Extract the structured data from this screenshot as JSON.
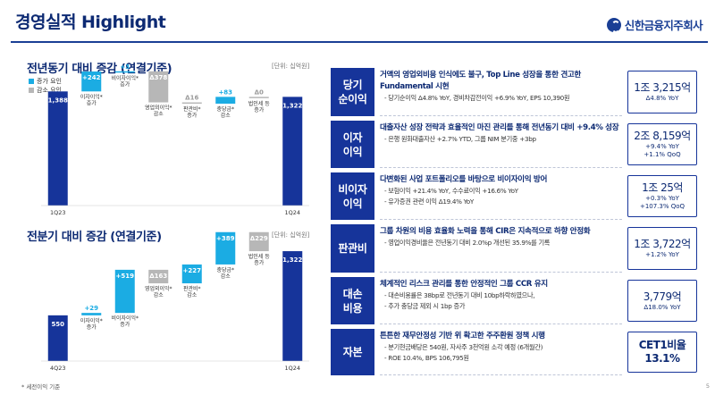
{
  "header": {
    "title": "경영실적 Highlight",
    "logo_text": "신한금융지주회사"
  },
  "left": {
    "yoy": {
      "title": "전년동기 대비 증감 (연결기준)",
      "unit": "[단위: 십억원]"
    },
    "qoq": {
      "title": "전분기 대비 증감 (연결기준)",
      "unit": "[단위: 십억원]"
    },
    "legend": {
      "increase": "증가 요인",
      "decrease": "감소 요인"
    },
    "colors": {
      "total": "#16349a",
      "increase": "#1bace3",
      "decrease": "#b7b7b7"
    }
  },
  "chart_data": [
    {
      "type": "bar",
      "subtype": "waterfall",
      "title": "전년동기 대비 증감 (연결기준)",
      "unit": "[단위: 십억원]",
      "categories": [
        "1Q23",
        "이자이익* 증가",
        "비이자이익* 증가",
        "영업외이익* 감소",
        "판관비* 증가",
        "충당금* 감소",
        "법인세 등 증가",
        "1Q24"
      ],
      "values": [
        1388,
        242,
        3,
        -378,
        -16,
        83,
        0,
        1322
      ],
      "data_labels": [
        "1,388",
        "+242",
        "+3",
        "Δ378",
        "Δ16",
        "+83",
        "Δ0",
        "1,322"
      ],
      "kinds": [
        "total",
        "increase",
        "increase",
        "decrease",
        "decrease",
        "increase",
        "decrease",
        "total"
      ]
    },
    {
      "type": "bar",
      "subtype": "waterfall",
      "title": "전분기 대비 증감 (연결기준)",
      "unit": "[단위: 십억원]",
      "categories": [
        "4Q23",
        "이자이익* 증가",
        "비이자이익* 증가",
        "영업외이익* 감소",
        "판관비* 감소",
        "충당금* 감소",
        "법인세 등 증가",
        "1Q24"
      ],
      "values": [
        550,
        29,
        519,
        -163,
        227,
        389,
        -229,
        1322
      ],
      "data_labels": [
        "550",
        "+29",
        "+519",
        "Δ163",
        "+227",
        "+389",
        "Δ229",
        "1,322"
      ],
      "kinds": [
        "total",
        "increase",
        "increase",
        "decrease",
        "increase",
        "increase",
        "decrease",
        "total"
      ]
    }
  ],
  "rows": [
    {
      "category": "당기\n순이익",
      "main": "거액의 영업외비용 인식에도 불구, Top Line 성장을 통한 견고한 Fundamental 시현",
      "subs": [
        "당기순이익 Δ4.8% YoY, 경비차감전이익 +6.9% YoY, EPS 10,390원"
      ],
      "value": "1조 3,215억",
      "value_subs": [
        "Δ4.8% YoY"
      ]
    },
    {
      "category": "이자\n이익",
      "main": "대출자산 성장 전략과 효율적인 마진 관리를 통해 전년동기 대비 +9.4% 성장",
      "subs": [
        "은행 원화대출자산 +2.7% YTD, 그룹 NIM 분기중 +3bp"
      ],
      "value": "2조 8,159억",
      "value_subs": [
        "+9.4% YoY",
        "+1.1% QoQ"
      ]
    },
    {
      "category": "비이자\n이익",
      "main": "다변화된 사업 포트폴리오를 바탕으로 비이자이익 방어",
      "subs": [
        "보험이익 +21.4% YoY, 수수료이익 +16.6% YoY",
        "유가증권 관련 이익 Δ19.4% YoY"
      ],
      "value": "1조 25억",
      "value_subs": [
        "+0.3% YoY",
        "+107.3% QoQ"
      ]
    },
    {
      "category": "판관비",
      "main": "그룹 차원의 비용 효율화 노력을 통해 CIR은 지속적으로 하향 안정화",
      "subs": [
        "영업이익경비율은 전년동기 대비 2.0%p 개선된 35.9%를 기록"
      ],
      "value": "1조 3,722억",
      "value_subs": [
        "+1.2% YoY"
      ]
    },
    {
      "category": "대손\n비용",
      "main": "체계적인 리스크 관리를 통한 안정적인 그룹 CCR 유지",
      "subs": [
        "대손비용률은 38bp로 전년동기 대비 10bp하락하였으나,",
        "추가 충당금 제외 시 1bp 증가"
      ],
      "value": "3,779억",
      "value_subs": [
        "Δ18.0% YoY"
      ]
    },
    {
      "category": "자본",
      "main": "튼튼한 재무안정성 기반 위 확고한 주주환원 정책 시행",
      "subs": [
        "분기현금배당은 540원, 자사주 3천억원 소각 예정 (6개월간)",
        "ROE 10.4%, BPS 106,795원"
      ],
      "value": "CET1비율\n13.1%",
      "value_subs": []
    }
  ],
  "footer": {
    "footnote": "* 세전이익 기준",
    "page": "5"
  }
}
